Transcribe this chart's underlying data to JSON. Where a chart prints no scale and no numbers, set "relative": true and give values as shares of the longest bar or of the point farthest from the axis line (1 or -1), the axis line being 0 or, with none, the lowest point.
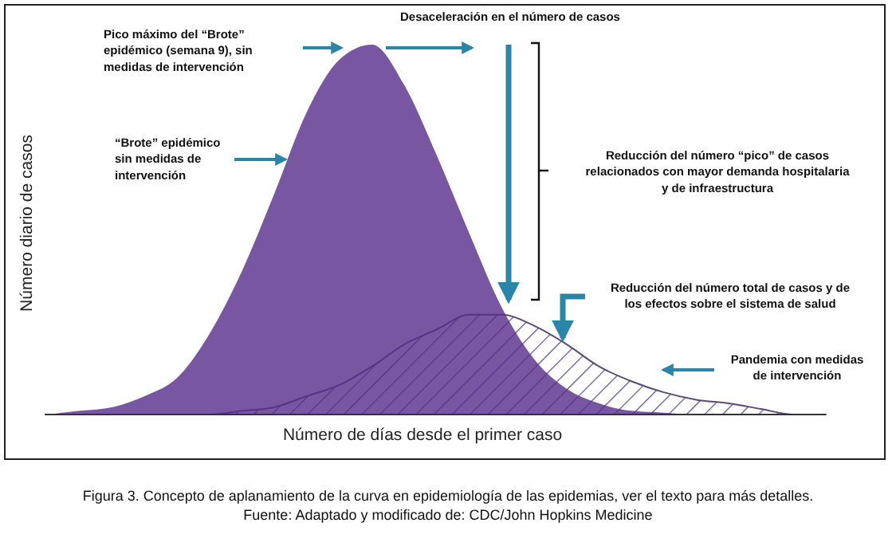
{
  "chart_data": {
    "type": "area",
    "relative": true,
    "xlabel": "Número de días desde el primer caso",
    "ylabel": "Número diario de casos",
    "categories": [
      null,
      null,
      null,
      null,
      null,
      null,
      null,
      null,
      null,
      null,
      null,
      null,
      null,
      null,
      null,
      null,
      null,
      null,
      null,
      null,
      null,
      null,
      null,
      null,
      null
    ],
    "series": [
      {
        "color": "#582c8b",
        "values": [
          0,
          0.01,
          0.02,
          0.05,
          0.1,
          0.22,
          0.39,
          0.6,
          0.82,
          0.96,
          1,
          0.89,
          0.7,
          0.49,
          0.29,
          0.15,
          0.07,
          0.03,
          0.01,
          0.005,
          0,
          0,
          0,
          0,
          0
        ]
      },
      {
        "color": "#5a4a7a",
        "values": [
          0,
          0,
          0,
          0,
          0,
          0,
          0.01,
          0.02,
          0.05,
          0.08,
          0.13,
          0.19,
          0.23,
          0.27,
          0.27,
          0.24,
          0.19,
          0.13,
          0.09,
          0.06,
          0.04,
          0.03,
          0.015,
          0,
          0
        ]
      }
    ],
    "annotations": [
      "Desaceleración en el número de casos",
      "Pico máximo del “Brote” epidémico (semana 9), sin medidas de intervención",
      "“Brote” epidémico sin medidas de intervención",
      "Reducción del número “pico” de casos relacionados con mayor demanda hospitalaria y de infraestructura",
      "Reducción del número total de casos y de los efectos sobre el sistema de salud",
      "Pandemia con medidas de intervención",
      "Figura 3. Concepto de aplanamiento de la curva en epidemiología de las epidemias, ver el texto para más detalles.",
      "Fuente: Adaptado y modificado de: CDC/John Hopkins Medicine"
    ]
  }
}
